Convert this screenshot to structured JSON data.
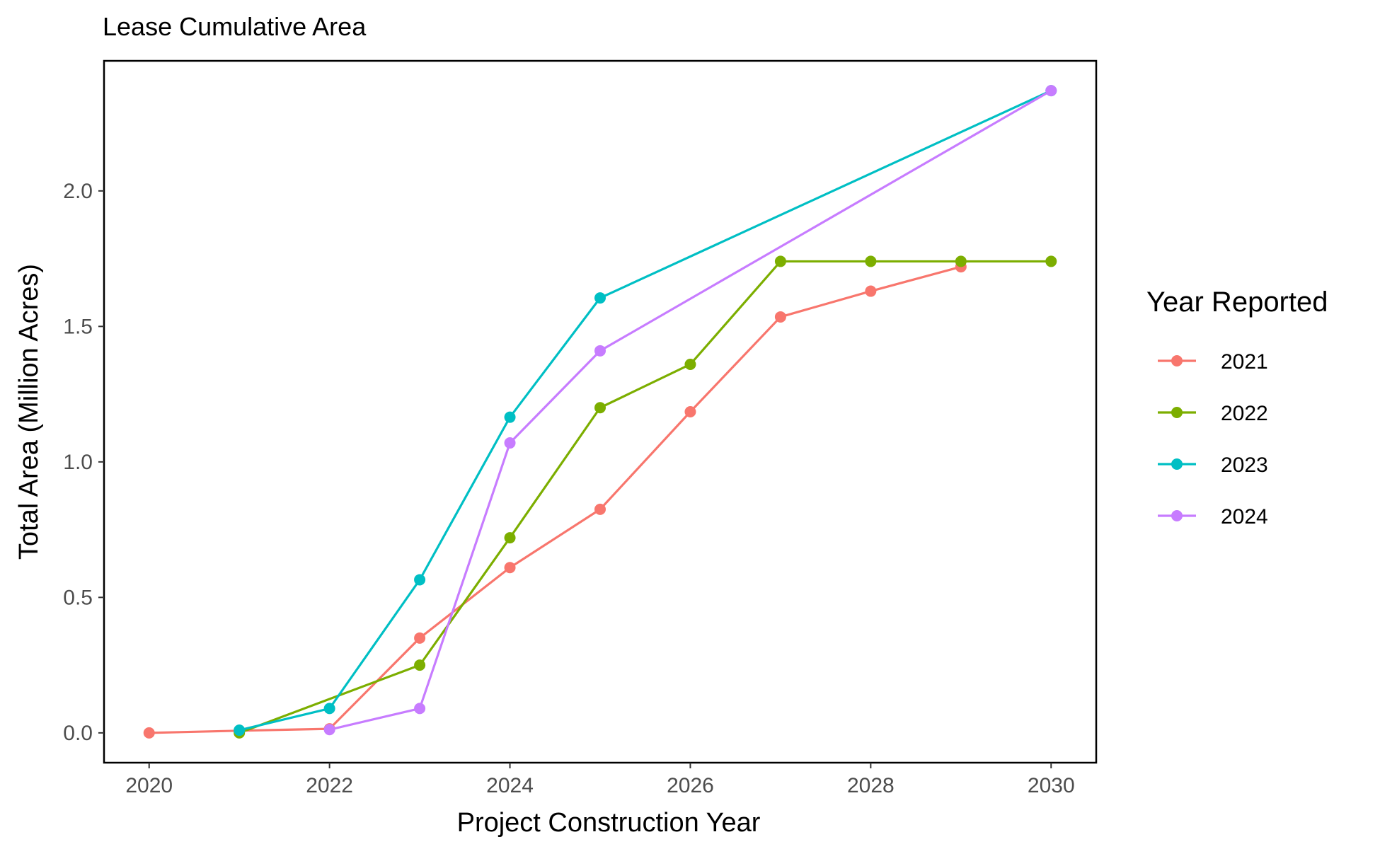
{
  "chart_data": {
    "type": "line",
    "title": "Lease Cumulative Area",
    "xlabel": "Project Construction Year",
    "ylabel": "Total Area (Million Acres)",
    "xlim": [
      2019.5,
      2030.5
    ],
    "ylim": [
      -0.11,
      2.48
    ],
    "x_ticks": [
      2020,
      2022,
      2024,
      2026,
      2028,
      2030
    ],
    "x_tick_labels": [
      "2020",
      "2022",
      "2024",
      "2026",
      "2028",
      "2030"
    ],
    "y_ticks": [
      0.0,
      0.5,
      1.0,
      1.5,
      2.0
    ],
    "y_tick_labels": [
      "0.0",
      "0.5",
      "1.0",
      "1.5",
      "2.0"
    ],
    "grid": false,
    "legend": {
      "title": "Year Reported",
      "position": "right"
    },
    "series": [
      {
        "name": "2021",
        "color": "#F8766D",
        "points": [
          {
            "x": 2020,
            "y": 0.0
          },
          {
            "x": 2021,
            "y": 0.008
          },
          {
            "x": 2022,
            "y": 0.015
          },
          {
            "x": 2023,
            "y": 0.35
          },
          {
            "x": 2024,
            "y": 0.61
          },
          {
            "x": 2025,
            "y": 0.825
          },
          {
            "x": 2026,
            "y": 1.185
          },
          {
            "x": 2027,
            "y": 1.535
          },
          {
            "x": 2028,
            "y": 1.63
          },
          {
            "x": 2029,
            "y": 1.72
          }
        ]
      },
      {
        "name": "2022",
        "color": "#7CAE00",
        "points": [
          {
            "x": 2021,
            "y": 0.0
          },
          {
            "x": 2023,
            "y": 0.25
          },
          {
            "x": 2024,
            "y": 0.72
          },
          {
            "x": 2025,
            "y": 1.2
          },
          {
            "x": 2026,
            "y": 1.36
          },
          {
            "x": 2027,
            "y": 1.74
          },
          {
            "x": 2028,
            "y": 1.74
          },
          {
            "x": 2029,
            "y": 1.74
          },
          {
            "x": 2030,
            "y": 1.74
          }
        ]
      },
      {
        "name": "2023",
        "color": "#00BFC4",
        "points": [
          {
            "x": 2021,
            "y": 0.01
          },
          {
            "x": 2022,
            "y": 0.09
          },
          {
            "x": 2023,
            "y": 0.565
          },
          {
            "x": 2024,
            "y": 1.165
          },
          {
            "x": 2025,
            "y": 1.605
          },
          {
            "x": 2030,
            "y": 2.37
          }
        ]
      },
      {
        "name": "2024",
        "color": "#C77CFF",
        "points": [
          {
            "x": 2022,
            "y": 0.012
          },
          {
            "x": 2023,
            "y": 0.09
          },
          {
            "x": 2024,
            "y": 1.07
          },
          {
            "x": 2025,
            "y": 1.41
          },
          {
            "x": 2030,
            "y": 2.37
          }
        ]
      }
    ]
  }
}
